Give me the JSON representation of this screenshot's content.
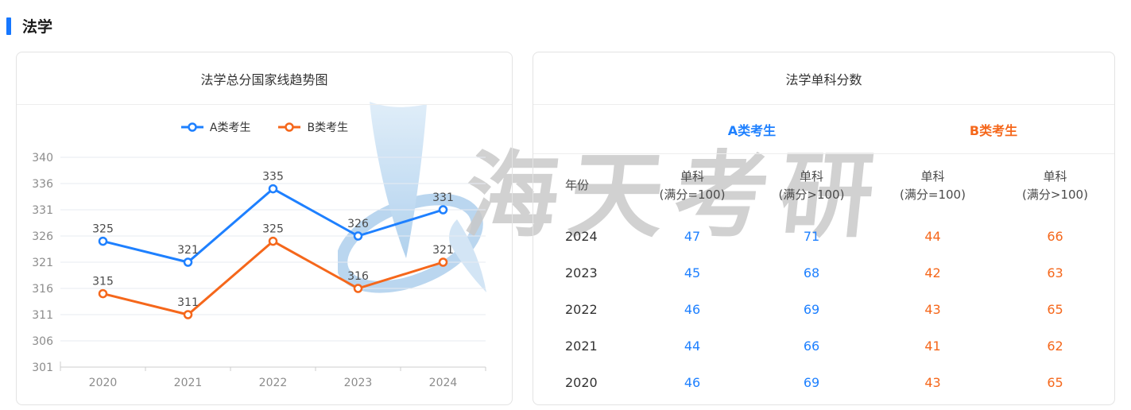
{
  "page": {
    "heading": "法学"
  },
  "watermark": {
    "text": "海天考研"
  },
  "colors": {
    "accent_blue": "#1e80ff",
    "accent_orange": "#f5671b",
    "heading_bar": "#1677ff",
    "grid_line": "#e7ebf2",
    "axis_line": "#cccccc",
    "tick_text": "#8c8c8c",
    "point_label_text": "#4a4a4a",
    "panel_border": "#e3e3e3",
    "watermark_gray": "#c9c9c9",
    "watermark_blue": "#b3d2ee"
  },
  "chart_data": {
    "type": "line",
    "title": "法学总分国家线趋势图",
    "categories": [
      "2020",
      "2021",
      "2022",
      "2023",
      "2024"
    ],
    "series": [
      {
        "name": "A类考生",
        "color": "#1e80ff",
        "values": [
          325,
          321,
          335,
          326,
          331
        ]
      },
      {
        "name": "B类考生",
        "color": "#f5671b",
        "values": [
          315,
          311,
          325,
          316,
          321
        ]
      }
    ],
    "y_ticks": [
      340,
      336,
      331,
      326,
      321,
      316,
      311,
      306,
      301
    ],
    "ylim": [
      301,
      340
    ],
    "grid": true,
    "legend_position": "top",
    "point_labels": true
  },
  "table": {
    "title": "法学单科分数",
    "group_headers": [
      {
        "label": "A类考生",
        "color": "#1e80ff"
      },
      {
        "label": "B类考生",
        "color": "#f5671b"
      }
    ],
    "col_headers": [
      {
        "line1": "年份",
        "line2": ""
      },
      {
        "line1": "单科",
        "line2": "(满分=100)"
      },
      {
        "line1": "单科",
        "line2": "(满分>100)"
      },
      {
        "line1": "单科",
        "line2": "(满分=100)"
      },
      {
        "line1": "单科",
        "line2": "(满分>100)"
      }
    ],
    "rows": [
      {
        "year": "2024",
        "values": [
          47,
          71,
          44,
          66
        ]
      },
      {
        "year": "2023",
        "values": [
          45,
          68,
          42,
          63
        ]
      },
      {
        "year": "2022",
        "values": [
          46,
          69,
          43,
          65
        ]
      },
      {
        "year": "2021",
        "values": [
          44,
          66,
          41,
          62
        ]
      },
      {
        "year": "2020",
        "values": [
          46,
          69,
          43,
          65
        ]
      }
    ]
  }
}
